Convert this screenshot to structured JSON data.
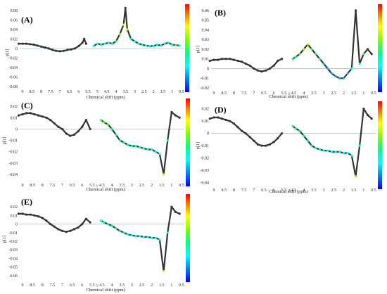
{
  "chart_data": [
    {
      "type": "scatter",
      "panel_label": "(A)",
      "xlabel": "Chemical shift (ppm)",
      "ylabel": "p[1]",
      "x_ticks": [
        "9",
        "8.5",
        "8",
        "7.5",
        "7",
        "6.5",
        "6",
        "5.5",
        "5",
        "4.5",
        "4",
        "3.5",
        "3",
        "2.5",
        "2",
        "1.5",
        "1",
        "0.5"
      ],
      "y_ticks": [
        0.08,
        0.06,
        0.04,
        0.02,
        0,
        -0.02,
        -0.04,
        -0.06,
        -0.08
      ],
      "ylim": [
        -0.08,
        0.09
      ],
      "axis_break_marker": "",
      "colorbar": true,
      "series": [
        {
          "region": "aromatic",
          "x": [
            9.2,
            9.0,
            8.8,
            8.6,
            8.4,
            8.2,
            8.0,
            7.8,
            7.6,
            7.4,
            7.2,
            7.0,
            6.8,
            6.6,
            6.4,
            6.2,
            6.0,
            5.8,
            5.7,
            5.6
          ],
          "y": [
            0.01,
            0.01,
            0.01,
            0.009,
            0.008,
            0.006,
            0.004,
            0.002,
            0.0,
            -0.003,
            -0.005,
            -0.006,
            -0.005,
            -0.003,
            -0.002,
            0.0,
            0.005,
            0.012,
            0.02,
            0.01
          ],
          "corr": [
            0.9,
            0.9,
            0.9,
            0.9,
            0.9,
            0.9,
            0.9,
            0.9,
            0.9,
            0.9,
            0.9,
            0.9,
            0.9,
            0.9,
            0.9,
            0.9,
            0.9,
            0.9,
            0.9,
            0.9
          ]
        },
        {
          "region": "aliphatic",
          "x": [
            5.2,
            5.0,
            4.8,
            4.6,
            4.4,
            4.2,
            4.0,
            3.8,
            3.6,
            3.5,
            3.4,
            3.2,
            3.0,
            2.8,
            2.6,
            2.4,
            2.2,
            2.0,
            1.8,
            1.6,
            1.4,
            1.2,
            1.0,
            0.8,
            0.6
          ],
          "y": [
            0.005,
            0.01,
            0.008,
            0.01,
            0.012,
            0.01,
            0.015,
            0.03,
            0.05,
            0.085,
            0.04,
            0.02,
            0.015,
            0.01,
            0.008,
            0.006,
            0.005,
            0.005,
            0.008,
            0.006,
            0.01,
            0.012,
            0.008,
            0.007,
            0.006
          ],
          "corr": [
            0.3,
            0.3,
            0.4,
            0.3,
            0.3,
            0.4,
            0.4,
            0.6,
            0.7,
            0.95,
            0.6,
            0.4,
            0.3,
            0.3,
            0.4,
            0.3,
            0.3,
            0.3,
            0.3,
            0.4,
            0.3,
            0.4,
            0.3,
            0.5,
            0.3
          ]
        }
      ]
    },
    {
      "type": "scatter",
      "panel_label": "(B)",
      "xlabel": "Chemical shift (ppm)",
      "ylabel": "p[1]",
      "x_ticks": [
        "9",
        "8.5",
        "8",
        "7.5",
        "7",
        "6.5",
        "6",
        "5.5",
        "4.5",
        "4",
        "3.5",
        "3",
        "2.5",
        "2",
        "1.5",
        "1",
        "0.5"
      ],
      "y_ticks": [
        0.06,
        0.05,
        0.04,
        0.03,
        0.02,
        0.01,
        0,
        -0.01,
        -0.02
      ],
      "ylim": [
        -0.02,
        0.065
      ],
      "axis_break_marker": "//",
      "colorbar": true,
      "series": [
        {
          "region": "aromatic",
          "x": [
            9.2,
            9.0,
            8.8,
            8.6,
            8.4,
            8.2,
            8.0,
            7.8,
            7.6,
            7.4,
            7.2,
            7.0,
            6.8,
            6.6,
            6.4,
            6.2,
            6.0,
            5.8,
            5.6
          ],
          "y": [
            0.008,
            0.009,
            0.009,
            0.01,
            0.01,
            0.01,
            0.009,
            0.008,
            0.007,
            0.005,
            0.003,
            0.0,
            -0.002,
            -0.003,
            -0.002,
            0.0,
            0.003,
            0.008,
            0.01
          ],
          "corr": [
            0.9,
            0.9,
            0.9,
            0.9,
            0.9,
            0.9,
            0.9,
            0.9,
            0.9,
            0.9,
            0.9,
            0.9,
            0.9,
            0.9,
            0.9,
            0.9,
            0.9,
            0.9,
            0.9
          ]
        },
        {
          "region": "aliphatic",
          "x": [
            4.6,
            4.4,
            4.2,
            4.0,
            3.8,
            3.6,
            3.4,
            3.2,
            3.0,
            2.8,
            2.6,
            2.4,
            2.2,
            2.0,
            1.8,
            1.6,
            1.4,
            1.2,
            1.0,
            0.8,
            0.6
          ],
          "y": [
            0.01,
            0.012,
            0.015,
            0.02,
            0.025,
            0.02,
            0.015,
            0.01,
            0.005,
            0.0,
            -0.005,
            -0.008,
            -0.01,
            -0.01,
            -0.005,
            0.0,
            0.06,
            0.005,
            0.015,
            0.02,
            0.015
          ],
          "corr": [
            0.4,
            0.4,
            0.5,
            0.6,
            0.6,
            0.5,
            0.4,
            0.3,
            0.2,
            0.2,
            0.2,
            0.2,
            0.2,
            0.2,
            0.2,
            0.3,
            0.95,
            0.3,
            0.5,
            0.9,
            0.9
          ]
        }
      ]
    },
    {
      "type": "scatter",
      "panel_label": "(C)",
      "xlabel": "Chemical shift (ppm)",
      "ylabel": "p[1]",
      "x_ticks": [
        "9",
        "8.5",
        "8",
        "7.5",
        "7",
        "6.5",
        "6",
        "5.5",
        "4.5",
        "4",
        "3.5",
        "3",
        "2.5",
        "2",
        "1.5",
        "1",
        "0.5"
      ],
      "y_ticks": [
        0.02,
        0.01,
        0,
        -0.01,
        -0.02,
        -0.03,
        -0.04
      ],
      "ylim": [
        -0.045,
        0.022
      ],
      "axis_break_marker": "//",
      "colorbar": true,
      "series": [
        {
          "region": "aromatic",
          "x": [
            9.2,
            9.0,
            8.8,
            8.6,
            8.4,
            8.2,
            8.0,
            7.8,
            7.6,
            7.4,
            7.2,
            7.0,
            6.8,
            6.6,
            6.4,
            6.2,
            6.0,
            5.8,
            5.6
          ],
          "y": [
            0.012,
            0.013,
            0.014,
            0.014,
            0.013,
            0.012,
            0.011,
            0.01,
            0.008,
            0.005,
            0.002,
            0.0,
            -0.004,
            -0.006,
            -0.005,
            -0.002,
            0.002,
            0.008,
            0.0
          ],
          "corr": [
            0.9,
            0.9,
            0.9,
            0.9,
            0.9,
            0.9,
            0.9,
            0.9,
            0.9,
            0.9,
            0.9,
            0.9,
            0.9,
            0.9,
            0.9,
            0.9,
            0.9,
            0.9,
            0.9
          ]
        },
        {
          "region": "aliphatic",
          "x": [
            4.6,
            4.4,
            4.2,
            4.0,
            3.8,
            3.6,
            3.4,
            3.2,
            3.0,
            2.8,
            2.6,
            2.4,
            2.2,
            2.0,
            1.8,
            1.6,
            1.4,
            1.2,
            1.0,
            0.8,
            0.6
          ],
          "y": [
            0.008,
            0.006,
            0.004,
            0.0,
            -0.005,
            -0.01,
            -0.012,
            -0.014,
            -0.015,
            -0.015,
            -0.016,
            -0.017,
            -0.018,
            -0.018,
            -0.02,
            -0.022,
            -0.04,
            -0.01,
            0.015,
            0.012,
            0.01
          ],
          "corr": [
            0.5,
            0.5,
            0.5,
            0.4,
            0.4,
            0.4,
            0.4,
            0.4,
            0.4,
            0.3,
            0.3,
            0.3,
            0.3,
            0.3,
            0.3,
            0.3,
            0.6,
            0.4,
            0.9,
            0.9,
            0.9
          ]
        }
      ]
    },
    {
      "type": "scatter",
      "panel_label": "(D)",
      "xlabel": "Chemical shift (ppm)",
      "ylabel": "p[1]",
      "x_ticks": [
        "9",
        "8.5",
        "8",
        "7.5",
        "7",
        "6.5",
        "6",
        "5.5",
        "4.5",
        "4",
        "3.5",
        "3",
        "2.5",
        "2",
        "1.5",
        "1",
        "0.5"
      ],
      "y_ticks": [
        0.02,
        0.01,
        0,
        -0.01,
        -0.02,
        -0.03,
        -0.04
      ],
      "ylim": [
        -0.042,
        0.025
      ],
      "axis_break_marker": "//",
      "colorbar": true,
      "series": [
        {
          "region": "aromatic",
          "x": [
            9.2,
            9.0,
            8.8,
            8.6,
            8.4,
            8.2,
            8.0,
            7.8,
            7.6,
            7.4,
            7.2,
            7.0,
            6.8,
            6.6,
            6.4,
            6.2,
            6.0,
            5.8,
            5.6
          ],
          "y": [
            0.012,
            0.013,
            0.013,
            0.012,
            0.011,
            0.01,
            0.008,
            0.005,
            0.002,
            0.0,
            -0.003,
            -0.006,
            -0.009,
            -0.01,
            -0.01,
            -0.009,
            -0.007,
            -0.004,
            0.0
          ],
          "corr": [
            0.9,
            0.9,
            0.9,
            0.9,
            0.9,
            0.9,
            0.9,
            0.9,
            0.9,
            0.9,
            0.9,
            0.9,
            0.9,
            0.9,
            0.9,
            0.9,
            0.9,
            0.9,
            0.9
          ]
        },
        {
          "region": "aliphatic",
          "x": [
            4.6,
            4.4,
            4.2,
            4.0,
            3.8,
            3.6,
            3.4,
            3.2,
            3.0,
            2.8,
            2.6,
            2.4,
            2.2,
            2.0,
            1.8,
            1.6,
            1.4,
            1.2,
            1.0,
            0.8,
            0.6
          ],
          "y": [
            0.006,
            0.004,
            0.002,
            -0.002,
            -0.006,
            -0.01,
            -0.012,
            -0.013,
            -0.014,
            -0.014,
            -0.015,
            -0.015,
            -0.015,
            -0.016,
            -0.016,
            -0.018,
            -0.035,
            -0.01,
            0.02,
            0.015,
            0.012
          ],
          "corr": [
            0.4,
            0.4,
            0.4,
            0.4,
            0.4,
            0.4,
            0.3,
            0.3,
            0.3,
            0.3,
            0.3,
            0.3,
            0.3,
            0.3,
            0.3,
            0.3,
            0.6,
            0.4,
            0.9,
            0.9,
            0.9
          ]
        }
      ]
    },
    {
      "type": "scatter",
      "panel_label": "(E)",
      "xlabel": "Chemical shift (ppm)",
      "ylabel": "p[1]",
      "x_ticks": [
        "9",
        "8.5",
        "8",
        "7.5",
        "7",
        "6.5",
        "6",
        "5.5",
        "4.5",
        "4",
        "3.5",
        "3",
        "2.5",
        "2",
        "1.5",
        "1",
        "0.5"
      ],
      "y_ticks": [
        0.02,
        0.01,
        0,
        -0.01,
        -0.02,
        -0.03,
        -0.04,
        -0.05,
        -0.06
      ],
      "ylim": [
        -0.065,
        0.025
      ],
      "axis_break_marker": "//",
      "colorbar": true,
      "series": [
        {
          "region": "aromatic",
          "x": [
            9.2,
            9.0,
            8.8,
            8.6,
            8.4,
            8.2,
            8.0,
            7.8,
            7.6,
            7.4,
            7.2,
            7.0,
            6.8,
            6.6,
            6.4,
            6.2,
            6.0,
            5.8,
            5.6
          ],
          "y": [
            0.012,
            0.012,
            0.011,
            0.011,
            0.01,
            0.009,
            0.007,
            0.004,
            0.0,
            -0.003,
            -0.006,
            -0.008,
            -0.009,
            -0.008,
            -0.006,
            -0.004,
            0.0,
            0.006,
            0.002
          ],
          "corr": [
            0.9,
            0.9,
            0.9,
            0.9,
            0.9,
            0.9,
            0.9,
            0.9,
            0.9,
            0.9,
            0.9,
            0.9,
            0.9,
            0.9,
            0.9,
            0.9,
            0.9,
            0.9,
            0.9
          ]
        },
        {
          "region": "aliphatic",
          "x": [
            4.6,
            4.4,
            4.2,
            4.0,
            3.8,
            3.6,
            3.4,
            3.2,
            3.0,
            2.8,
            2.6,
            2.4,
            2.2,
            2.0,
            1.8,
            1.6,
            1.4,
            1.2,
            1.0,
            0.8,
            0.6
          ],
          "y": [
            0.004,
            0.002,
            0.0,
            -0.002,
            -0.005,
            -0.008,
            -0.01,
            -0.012,
            -0.013,
            -0.014,
            -0.014,
            -0.015,
            -0.015,
            -0.016,
            -0.016,
            -0.018,
            -0.055,
            -0.01,
            0.02,
            0.014,
            0.012
          ],
          "corr": [
            0.4,
            0.4,
            0.4,
            0.4,
            0.4,
            0.4,
            0.3,
            0.3,
            0.3,
            0.3,
            0.3,
            0.3,
            0.3,
            0.3,
            0.3,
            0.3,
            0.7,
            0.4,
            0.9,
            0.9,
            0.9
          ]
        }
      ]
    }
  ],
  "colors": {
    "line": "#333333",
    "zero_line": "#9aa7b0",
    "colorbar_stops": [
      "#0000ff",
      "#0080ff",
      "#00ffff",
      "#00ff80",
      "#80ff00",
      "#ffff00",
      "#ff8000",
      "#ff0000"
    ]
  }
}
